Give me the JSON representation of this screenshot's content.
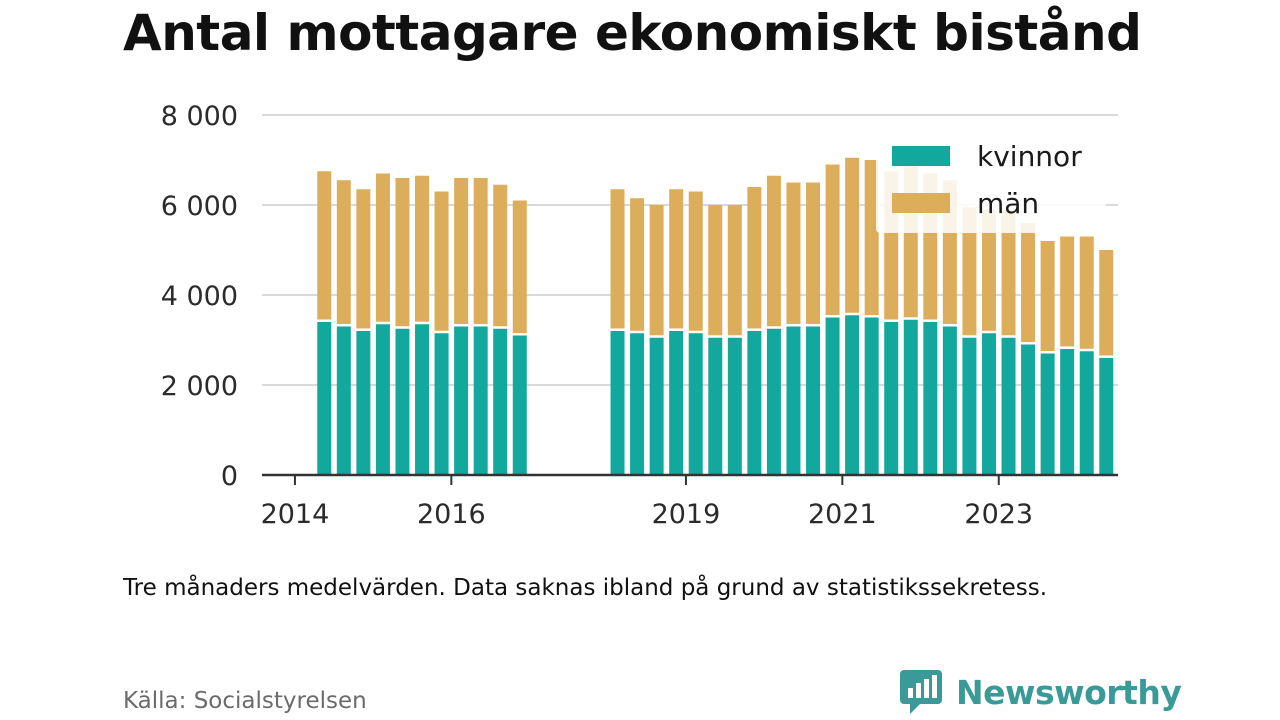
{
  "title": "Antal mottagare ekonomiskt bistånd",
  "note": "Tre månaders medelvärden. Data saknas ibland på grund av statistikssekretess.",
  "source": "Källa: Socialstyrelsen",
  "brand": {
    "name": "Newsworthy",
    "icon": "newsworthy-logo-icon"
  },
  "colors": {
    "kvinnor": "#13a89e",
    "man": "#dcae5c",
    "axis": "#333333",
    "grid": "#d9d9d9"
  },
  "chart_data": {
    "type": "bar",
    "stacked": true,
    "title": "Antal mottagare ekonomiskt bistånd",
    "x_tick_labels": [
      "2014",
      "2016",
      "2019",
      "2021",
      "2023"
    ],
    "y_tick_labels": [
      "0",
      "2 000",
      "4 000",
      "6 000",
      "8 000"
    ],
    "ylim": [
      0,
      8000
    ],
    "grid": true,
    "legend": "top-right",
    "categories": [
      "2014-Q2",
      "2014-Q3",
      "2014-Q4",
      "2015-Q1",
      "2015-Q2",
      "2015-Q3",
      "2015-Q4",
      "2016-Q1",
      "2016-Q2",
      "2016-Q3",
      "2016-Q4",
      "2017-Q1",
      "2017-Q2",
      "2017-Q3",
      "2017-Q4",
      "2018-Q1",
      "2018-Q2",
      "2018-Q3",
      "2018-Q4",
      "2019-Q1",
      "2019-Q2",
      "2019-Q3",
      "2019-Q4",
      "2020-Q1",
      "2020-Q2",
      "2020-Q3",
      "2020-Q4",
      "2021-Q1",
      "2021-Q2",
      "2021-Q3",
      "2021-Q4",
      "2022-Q1",
      "2022-Q2",
      "2022-Q3",
      "2022-Q4",
      "2023-Q1",
      "2023-Q2",
      "2023-Q3",
      "2023-Q4",
      "2024-Q1",
      "2024-Q2"
    ],
    "series": [
      {
        "name": "kvinnor",
        "values": [
          3400,
          3300,
          3200,
          3350,
          3250,
          3350,
          3150,
          3300,
          3300,
          3250,
          3100,
          null,
          null,
          null,
          null,
          3200,
          3150,
          3050,
          3200,
          3150,
          3050,
          3050,
          3200,
          3250,
          3300,
          3300,
          3500,
          3550,
          3500,
          3400,
          3450,
          3400,
          3300,
          3050,
          3150,
          3050,
          2900,
          2700,
          2800,
          2750,
          2600
        ]
      },
      {
        "name": "män",
        "values": [
          3350,
          3250,
          3150,
          3350,
          3350,
          3300,
          3150,
          3300,
          3300,
          3200,
          3000,
          null,
          null,
          null,
          null,
          3150,
          3000,
          2950,
          3150,
          3150,
          2950,
          2950,
          3200,
          3400,
          3200,
          3200,
          3400,
          3500,
          3500,
          3350,
          3450,
          3300,
          3250,
          2900,
          2750,
          2850,
          2700,
          2500,
          2500,
          2550,
          2400
        ]
      }
    ]
  }
}
